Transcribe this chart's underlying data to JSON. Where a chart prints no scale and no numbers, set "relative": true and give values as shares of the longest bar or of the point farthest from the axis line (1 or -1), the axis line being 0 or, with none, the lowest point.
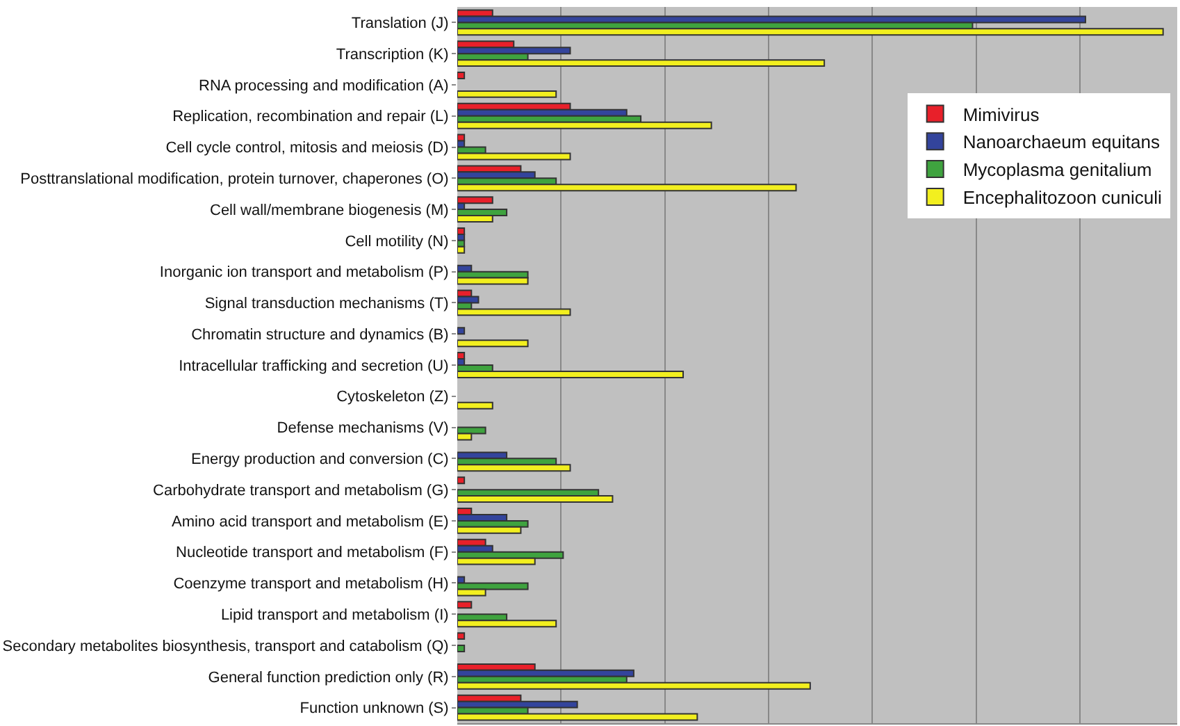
{
  "chart_data": {
    "type": "bar",
    "orientation": "horizontal",
    "relative": true,
    "grid": "x",
    "legend": "top right",
    "categories": [
      "Translation (J)",
      "Transcription (K)",
      "RNA processing and modification (A)",
      "Replication, recombination and repair (L)",
      "Cell cycle control, mitosis and meiosis (D)",
      "Posttranslational modification, protein turnover, chaperones (O)",
      "Cell wall/membrane biogenesis (M)",
      "Cell motility (N)",
      "Inorganic ion transport and metabolism (P)",
      "Signal transduction mechanisms (T)",
      "Chromatin structure and dynamics (B)",
      "Intracellular trafficking and secretion (U)",
      "Cytoskeleton (Z)",
      "Defense mechanisms (V)",
      "Energy production and conversion (C)",
      "Carbohydrate transport and metabolism (G)",
      "Amino acid transport and metabolism (E)",
      "Nucleotide transport and metabolism (F)",
      "Coenzyme transport and metabolism (H)",
      "Lipid transport and metabolism (I)",
      "Secondary metabolites biosynthesis, transport and catabolism (Q)",
      "General function prediction only (R)",
      "Function unknown (S)"
    ],
    "series": [
      {
        "name": "Mimivirus",
        "color": "#e8202a",
        "values": [
          0.05,
          0.08,
          0.01,
          0.16,
          0.01,
          0.09,
          0.05,
          0.01,
          0,
          0.02,
          0,
          0.01,
          0,
          0,
          0,
          0.01,
          0.02,
          0.04,
          0,
          0.02,
          0.01,
          0.11,
          0.09
        ]
      },
      {
        "name": "Nanoarchaeum equitans",
        "color": "#33449c",
        "values": [
          0.89,
          0.16,
          0,
          0.24,
          0.01,
          0.11,
          0.01,
          0.01,
          0.02,
          0.03,
          0.01,
          0.01,
          0,
          0,
          0.07,
          0,
          0.07,
          0.05,
          0.01,
          0,
          0,
          0.25,
          0.17
        ]
      },
      {
        "name": "Mycoplasma genitalium",
        "color": "#3fa33f",
        "values": [
          0.73,
          0.1,
          0,
          0.26,
          0.04,
          0.14,
          0.07,
          0.01,
          0.1,
          0.02,
          0,
          0.05,
          0,
          0.04,
          0.14,
          0.2,
          0.1,
          0.15,
          0.1,
          0.07,
          0.01,
          0.24,
          0.1
        ]
      },
      {
        "name": "Encephalitozoon cuniculi",
        "color": "#f2ef1f",
        "values": [
          1,
          0.52,
          0.14,
          0.36,
          0.16,
          0.48,
          0.05,
          0.01,
          0.1,
          0.16,
          0.1,
          0.32,
          0.05,
          0.02,
          0.16,
          0.22,
          0.09,
          0.11,
          0.04,
          0.14,
          0,
          0.5,
          0.34
        ]
      }
    ]
  }
}
